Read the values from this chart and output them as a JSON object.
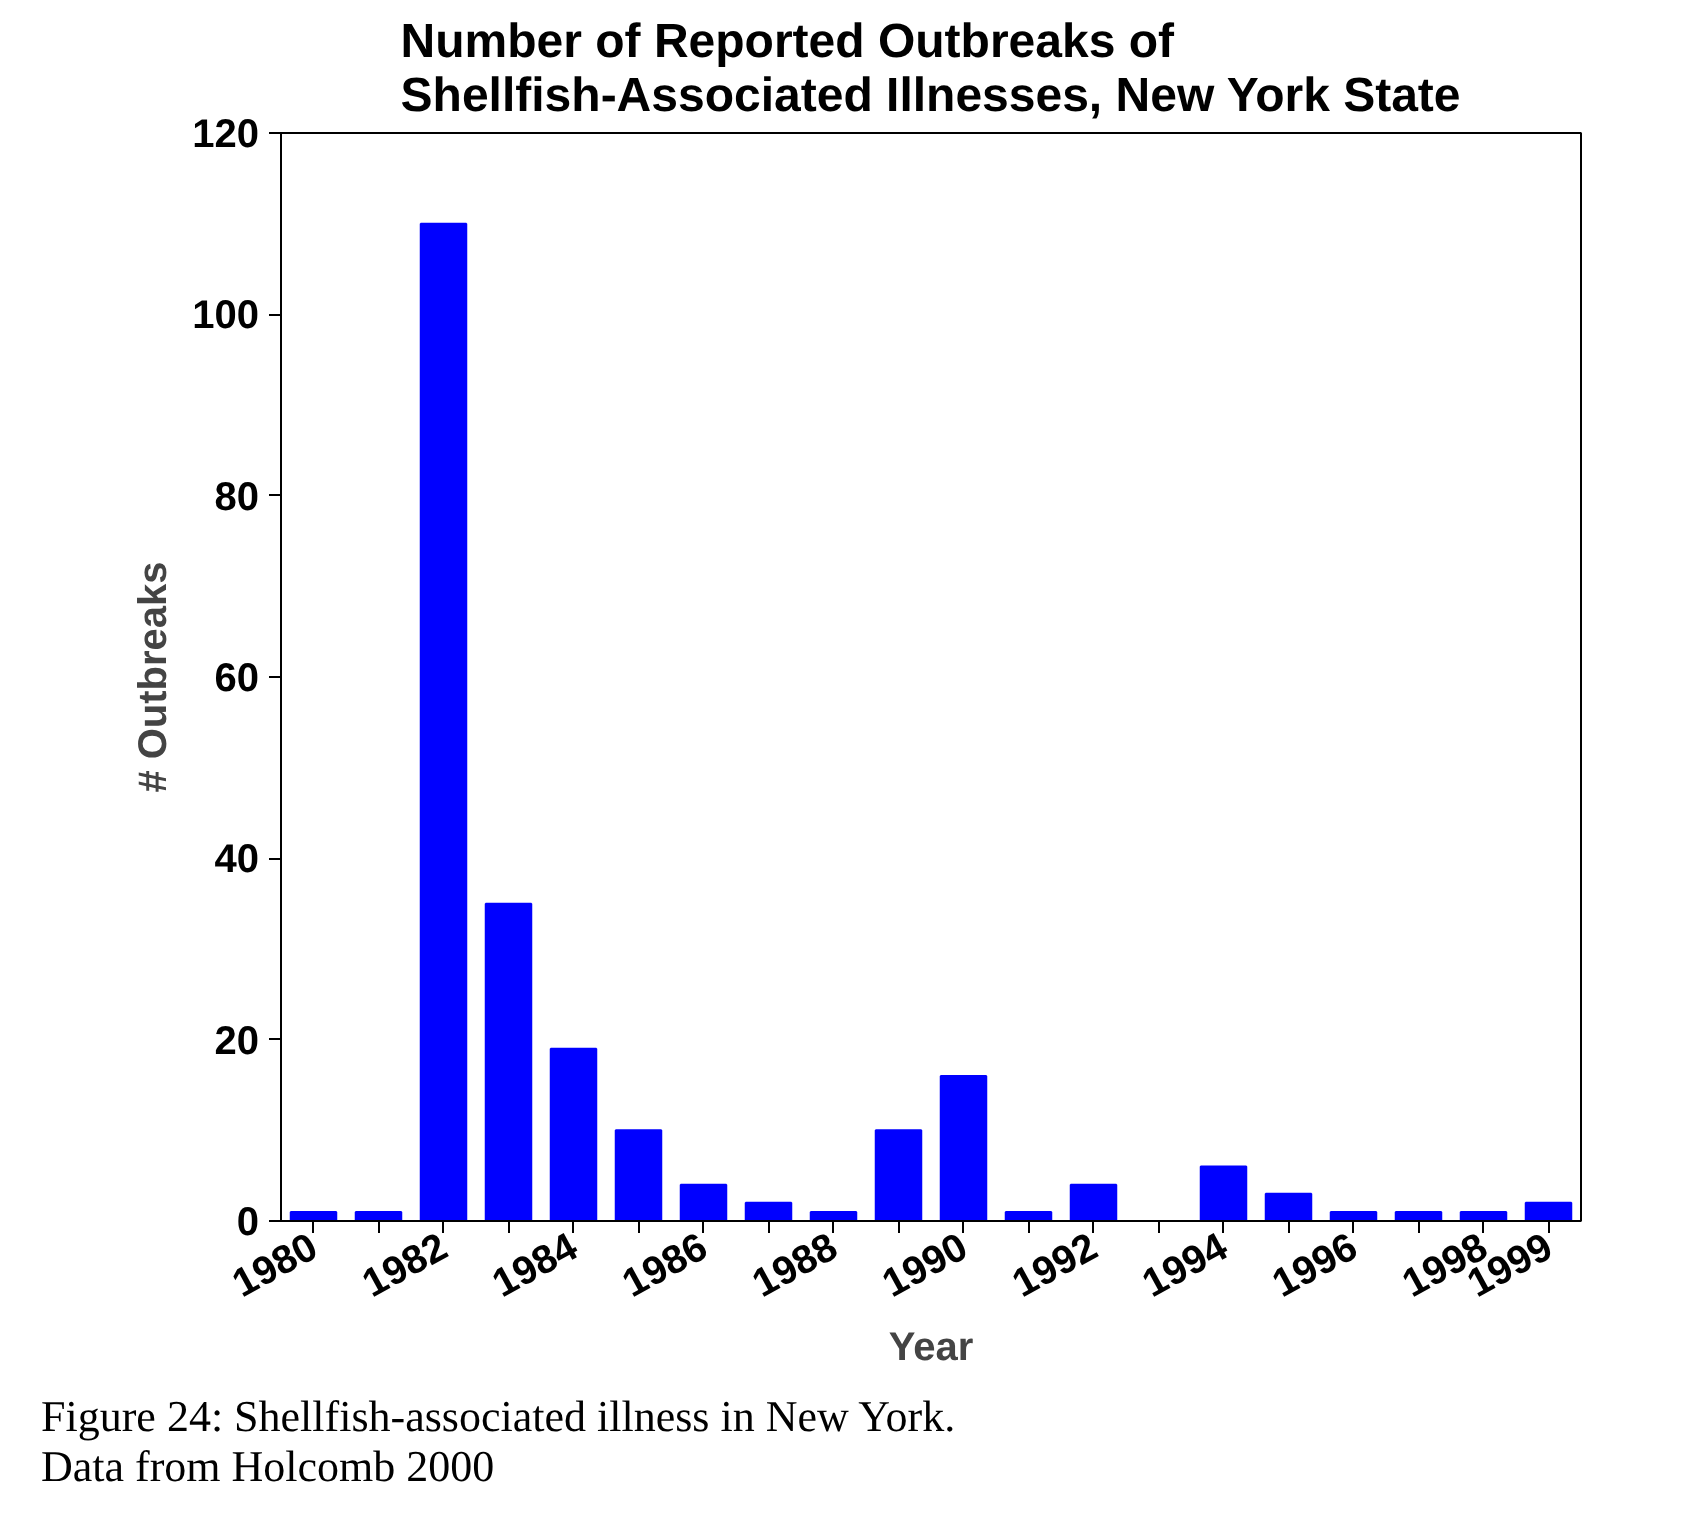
{
  "chart_data": {
    "type": "bar",
    "title": "Number of Reported Outbreaks of\nShellfish-Associated Illnesses, New York State",
    "xlabel": "Year",
    "ylabel": "# Outbreaks",
    "categories": [
      "1980",
      null,
      "1982",
      null,
      "1984",
      null,
      "1986",
      null,
      "1988",
      null,
      "1990",
      null,
      "1992",
      null,
      "1994",
      null,
      "1996",
      null,
      "1998",
      "1999"
    ],
    "values": [
      1,
      1,
      110,
      35,
      19,
      10,
      4,
      2,
      1,
      10,
      16,
      1,
      4,
      0,
      6,
      3,
      1,
      1,
      1,
      2
    ],
    "color": "#0000ff",
    "ylim": [
      0,
      120
    ],
    "yticks": [
      0,
      20,
      40,
      60,
      80,
      100,
      120
    ],
    "grid": false,
    "annotations": [
      "Figure 24: Shellfish-associated illness in New York. Data from Holcomb 2000"
    ]
  }
}
